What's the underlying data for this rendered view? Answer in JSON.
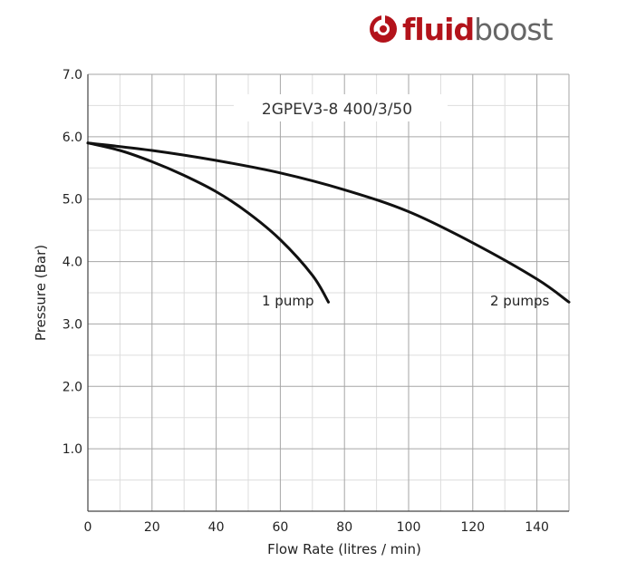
{
  "brand": {
    "part1": "fluid",
    "part2": "boost",
    "accent_color": "#b3131b",
    "text_color": "#666666",
    "icon": "fluidboost-swirl-icon"
  },
  "chart_data": {
    "type": "line",
    "title": "2GPEV3-8 400/3/50",
    "xlabel": "Flow Rate (litres / min)",
    "ylabel": "Pressure (Bar)",
    "xlim": [
      0,
      150
    ],
    "ylim": [
      0,
      7
    ],
    "xticks": [
      0,
      20,
      40,
      60,
      80,
      100,
      120,
      140
    ],
    "yticks": [
      1,
      2,
      3,
      4,
      5,
      6,
      7
    ],
    "xtick_labels": [
      "0",
      "20",
      "40",
      "60",
      "80",
      "100",
      "120",
      "140"
    ],
    "ytick_labels": [
      "1.0",
      "2.0",
      "3.0",
      "4.0",
      "5.0",
      "6.0",
      "7.0"
    ],
    "grid": true,
    "legend": "none",
    "series": [
      {
        "name": "1 pump",
        "color": "#111111",
        "points": [
          [
            0,
            5.9
          ],
          [
            10,
            5.78
          ],
          [
            20,
            5.6
          ],
          [
            30,
            5.38
          ],
          [
            40,
            5.12
          ],
          [
            50,
            4.78
          ],
          [
            60,
            4.35
          ],
          [
            70,
            3.78
          ],
          [
            75,
            3.35
          ]
        ]
      },
      {
        "name": "2 pumps",
        "color": "#111111",
        "points": [
          [
            0,
            5.9
          ],
          [
            20,
            5.78
          ],
          [
            40,
            5.62
          ],
          [
            60,
            5.42
          ],
          [
            80,
            5.15
          ],
          [
            100,
            4.8
          ],
          [
            120,
            4.3
          ],
          [
            140,
            3.72
          ],
          [
            150,
            3.35
          ]
        ]
      }
    ]
  }
}
